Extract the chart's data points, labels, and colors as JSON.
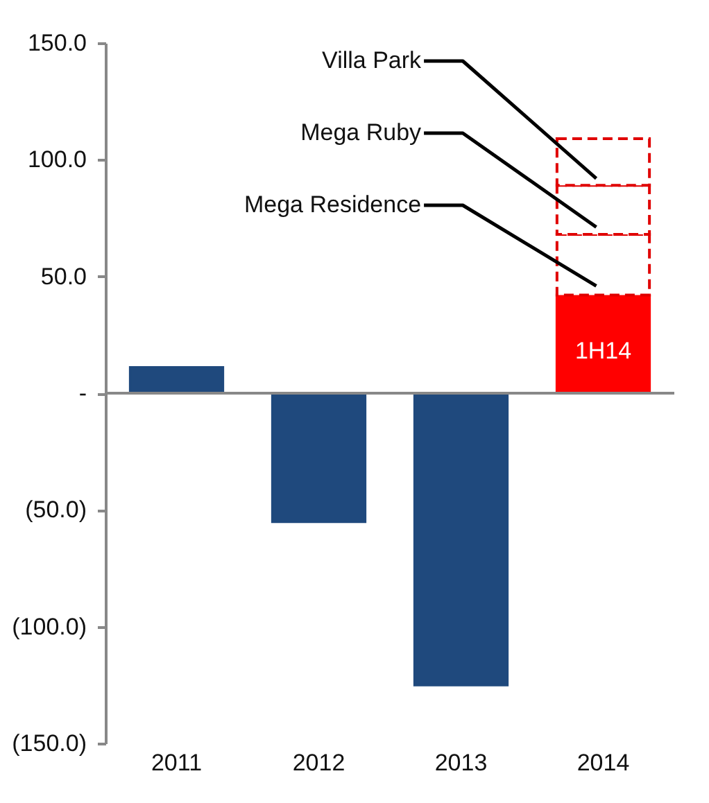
{
  "chart_data": {
    "type": "bar",
    "stacked": true,
    "categories": [
      "2011",
      "2012",
      "2013",
      "2014"
    ],
    "series": [
      {
        "values": [
          11,
          -55,
          -125,
          42
        ],
        "colors": [
          "#1f497d",
          "#1f497d",
          "#1f497d",
          "#ff0000"
        ]
      },
      {
        "name": "Mega Residence",
        "color": "#e00000",
        "line_style": "dashed",
        "values": [
          null,
          null,
          null,
          26
        ]
      },
      {
        "name": "Mega Ruby",
        "color": "#e00000",
        "line_style": "dashed",
        "values": [
          null,
          null,
          null,
          21
        ]
      },
      {
        "name": "Villa Park",
        "color": "#e00000",
        "line_style": "dashed",
        "values": [
          null,
          null,
          null,
          20
        ]
      }
    ],
    "ylim": [
      -150,
      150
    ],
    "yticks": [
      {
        "value": -150,
        "label": "(150.0)"
      },
      {
        "value": -100,
        "label": "(100.0)"
      },
      {
        "value": -50,
        "label": "(50.0)"
      },
      {
        "value": 0,
        "label": "-"
      },
      {
        "value": 50,
        "label": "50.0"
      },
      {
        "value": 100,
        "label": "100.0"
      },
      {
        "value": 150,
        "label": "150.0"
      }
    ],
    "annotations": [
      "1H14"
    ]
  }
}
